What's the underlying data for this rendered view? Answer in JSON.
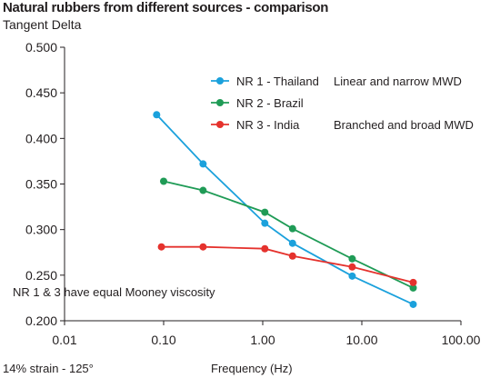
{
  "chart_data": {
    "type": "line",
    "title": "Natural rubbers from different sources - comparison",
    "ylabel": "Tangent Delta",
    "xlabel": "Frequency (Hz)",
    "x_scale": "log",
    "xlim": [
      0.01,
      100
    ],
    "ylim": [
      0.2,
      0.5
    ],
    "x_ticks": [
      "0.01",
      "0.10",
      "1.00",
      "10.00",
      "100.00"
    ],
    "x_tick_values": [
      0.01,
      0.1,
      1,
      10,
      100
    ],
    "y_ticks": [
      "0.200",
      "0.250",
      "0.300",
      "0.350",
      "0.400",
      "0.450",
      "0.500"
    ],
    "y_tick_values": [
      0.2,
      0.25,
      0.3,
      0.35,
      0.4,
      0.45,
      0.5
    ],
    "grid": false,
    "legend_position": "top-right",
    "series": [
      {
        "name": "NR 1 - Thailand",
        "description": "Linear and narrow MWD",
        "color": "#1ba1dc",
        "x": [
          0.085,
          0.25,
          1.05,
          2.0,
          8.0,
          33.0
        ],
        "y": [
          0.426,
          0.372,
          0.307,
          0.285,
          0.249,
          0.218
        ]
      },
      {
        "name": "NR 2 - Brazil",
        "description": "",
        "color": "#1f9b56",
        "x": [
          0.1,
          0.25,
          1.05,
          2.0,
          8.0,
          33.0
        ],
        "y": [
          0.353,
          0.343,
          0.319,
          0.301,
          0.268,
          0.236
        ]
      },
      {
        "name": "NR 3 - India",
        "description": "Branched and broad MWD",
        "color": "#e5322d",
        "x": [
          0.095,
          0.25,
          1.05,
          2.0,
          8.0,
          33.0
        ],
        "y": [
          0.281,
          0.281,
          0.279,
          0.271,
          0.259,
          0.242
        ]
      }
    ],
    "annotations": [
      "NR 1 & 3 have equal Mooney viscosity"
    ],
    "footnote": "14% strain - 125°"
  }
}
